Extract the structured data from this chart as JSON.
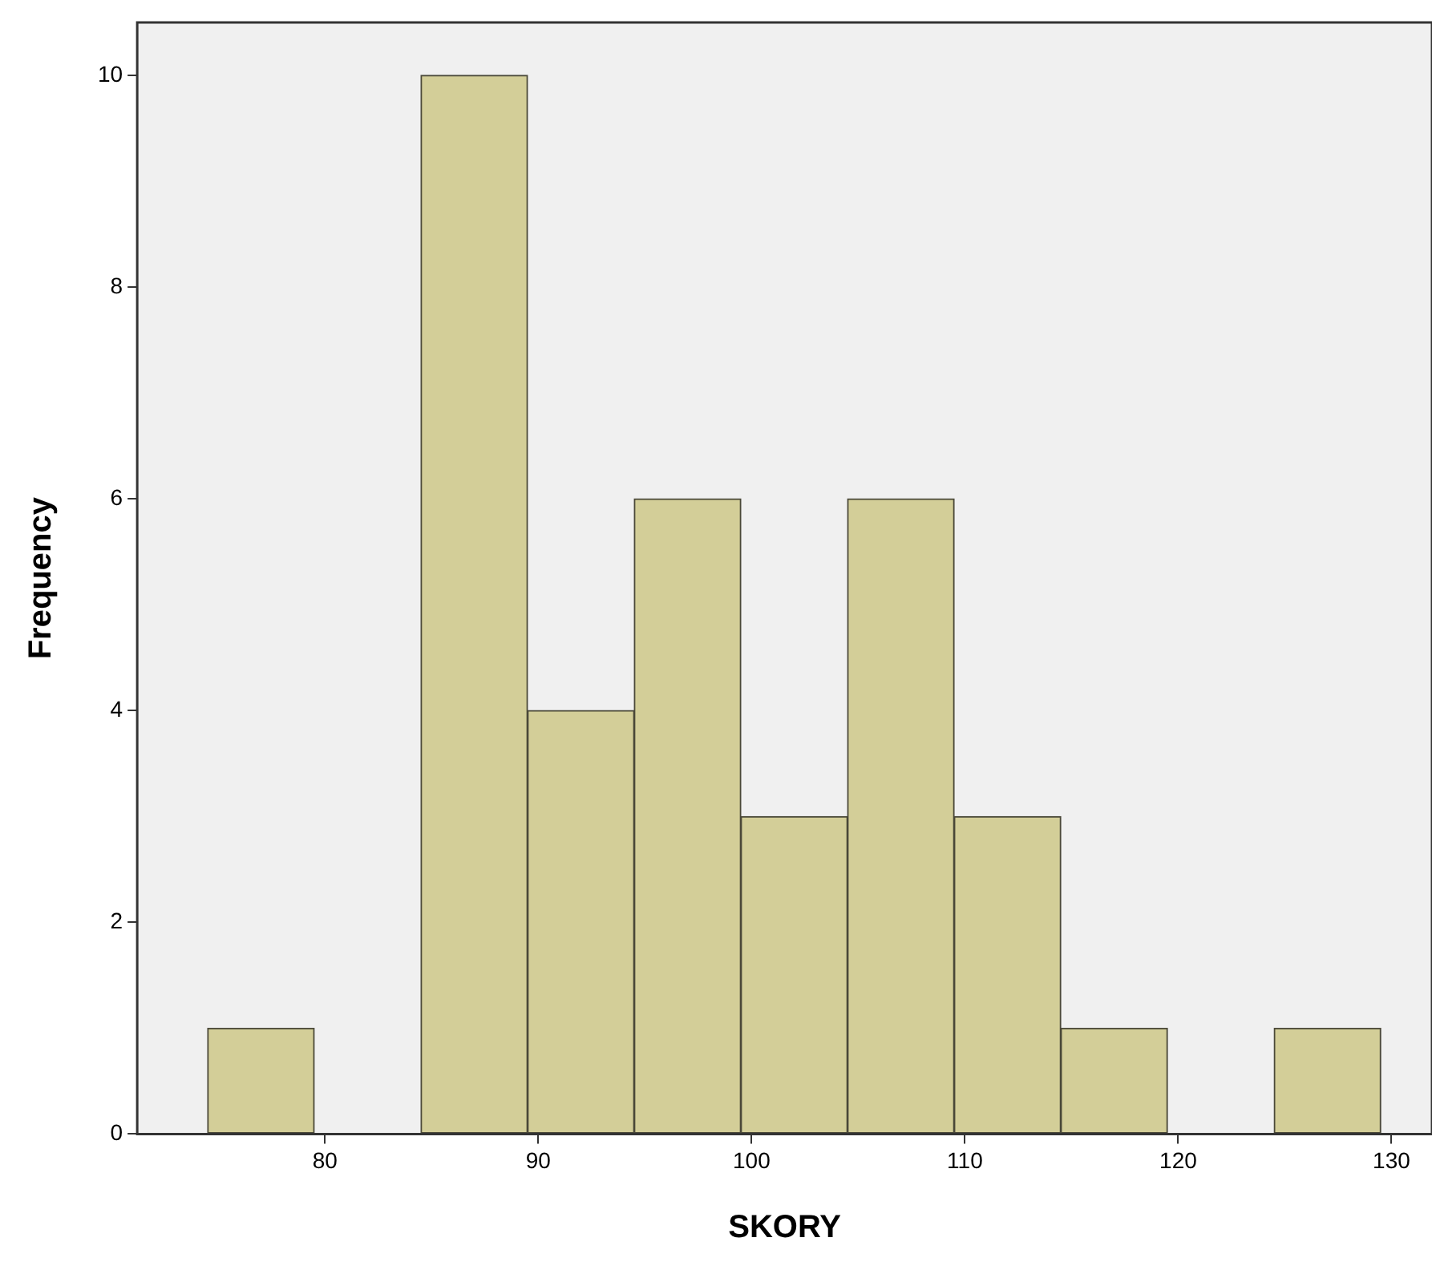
{
  "chart_data": {
    "type": "histogram",
    "xlabel": "SKORY",
    "ylabel": "Frequency",
    "bins": [
      74.5,
      79.5,
      84.5,
      89.5,
      94.5,
      99.5,
      104.5,
      109.5,
      114.5,
      119.5,
      124.5,
      129.5
    ],
    "values": [
      1,
      0,
      10,
      4,
      6,
      3,
      6,
      3,
      1,
      0,
      1
    ],
    "color": "#d3ce98",
    "xlim": [
      71.2,
      131.9
    ],
    "xticks": [
      80,
      90,
      100,
      110,
      120,
      130
    ],
    "ylim": [
      0,
      10.5
    ],
    "yticks": [
      0,
      2,
      4,
      6,
      8,
      10
    ],
    "grid": false,
    "legend": false
  }
}
